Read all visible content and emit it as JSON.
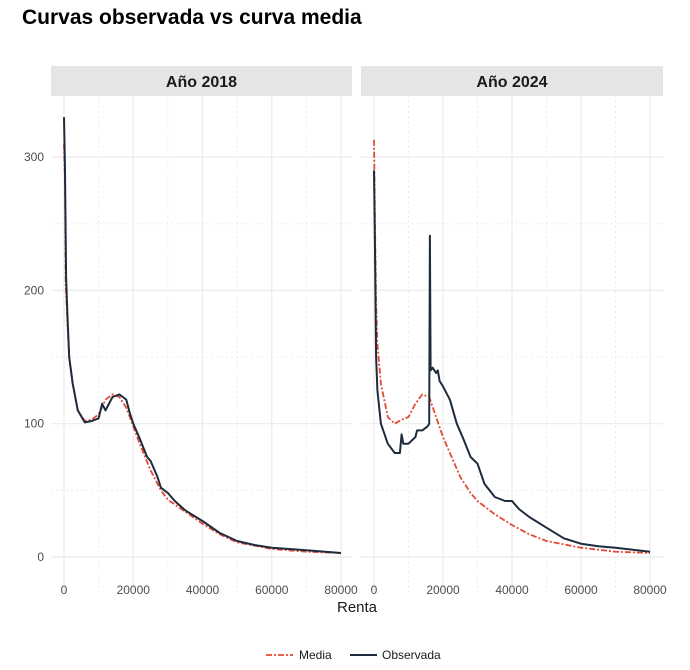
{
  "chart_data": {
    "type": "line",
    "title": "Curvas observada vs curva media",
    "xlabel": "Renta",
    "ylabel": "",
    "xlim": [
      0,
      80000
    ],
    "ylim": [
      0,
      330
    ],
    "x_ticks": [
      "0",
      "20000",
      "40000",
      "60000",
      "80000"
    ],
    "y_ticks": [
      "0",
      "100",
      "200",
      "300"
    ],
    "x_tick_values": [
      0,
      20000,
      40000,
      60000,
      80000
    ],
    "y_tick_values": [
      0,
      100,
      200,
      300
    ],
    "grid": true,
    "legend": {
      "position": "bottom",
      "entries": [
        "Media",
        "Observada"
      ]
    },
    "colors": {
      "Media": "#e34a33",
      "Observada": "#1e2b3c"
    },
    "panels": [
      {
        "label": "Año 2018",
        "series": [
          {
            "name": "Media",
            "x": [
              0,
              300,
              500,
              1000,
              1500,
              2500,
              4000,
              6000,
              8000,
              10000,
              12000,
              14000,
              16000,
              18000,
              20000,
              22000,
              25000,
              28000,
              30000,
              35000,
              40000,
              45000,
              50000,
              60000,
              70000,
              80000
            ],
            "y": [
              310,
              280,
              205,
              175,
              150,
              130,
              110,
              102,
              103,
              107,
              118,
              122,
              120,
              112,
              98,
              84,
              65,
              50,
              43,
              34,
              25,
              17,
              11,
              6,
              4,
              3
            ]
          },
          {
            "name": "Observada",
            "x": [
              0,
              300,
              600,
              1000,
              1500,
              2500,
              4000,
              6000,
              8000,
              10000,
              11000,
              12000,
              14000,
              16000,
              17000,
              18000,
              19000,
              20000,
              22000,
              24000,
              25000,
              27000,
              28000,
              30000,
              32000,
              35000,
              40000,
              45000,
              50000,
              55000,
              60000,
              70000,
              80000
            ],
            "y": [
              330,
              290,
              210,
              180,
              150,
              130,
              110,
              101,
              102,
              104,
              115,
              110,
              120,
              122,
              120,
              118,
              108,
              100,
              88,
              75,
              72,
              60,
              52,
              48,
              42,
              35,
              27,
              18,
              12,
              9,
              7,
              5,
              3
            ]
          }
        ]
      },
      {
        "label": "Año 2024",
        "series": [
          {
            "name": "Media",
            "x": [
              0,
              300,
              600,
              1000,
              2000,
              4000,
              6000,
              8000,
              10000,
              12000,
              14000,
              16000,
              18000,
              20000,
              22000,
              25000,
              28000,
              30000,
              35000,
              40000,
              45000,
              50000,
              60000,
              70000,
              80000
            ],
            "y": [
              313,
              250,
              190,
              160,
              130,
              105,
              100,
              103,
              105,
              115,
              122,
              120,
              105,
              90,
              78,
              60,
              48,
              42,
              32,
              24,
              17,
              12,
              7,
              4,
              3
            ]
          },
          {
            "name": "Observada",
            "x": [
              0,
              300,
              600,
              1000,
              2000,
              4000,
              6000,
              7500,
              8000,
              8500,
              10000,
              12000,
              12500,
              14000,
              15500,
              16000,
              16200,
              16400,
              17000,
              18000,
              18500,
              19000,
              20000,
              22000,
              24000,
              26000,
              28000,
              30000,
              32000,
              35000,
              38000,
              40000,
              42000,
              45000,
              50000,
              55000,
              60000,
              65000,
              70000,
              80000
            ],
            "y": [
              290,
              230,
              150,
              125,
              100,
              85,
              78,
              78,
              92,
              85,
              85,
              90,
              95,
              95,
              98,
              100,
              241,
              140,
              142,
              138,
              140,
              132,
              128,
              118,
              100,
              88,
              75,
              70,
              55,
              45,
              42,
              42,
              36,
              30,
              22,
              14,
              10,
              8,
              7,
              4
            ]
          }
        ]
      }
    ]
  }
}
